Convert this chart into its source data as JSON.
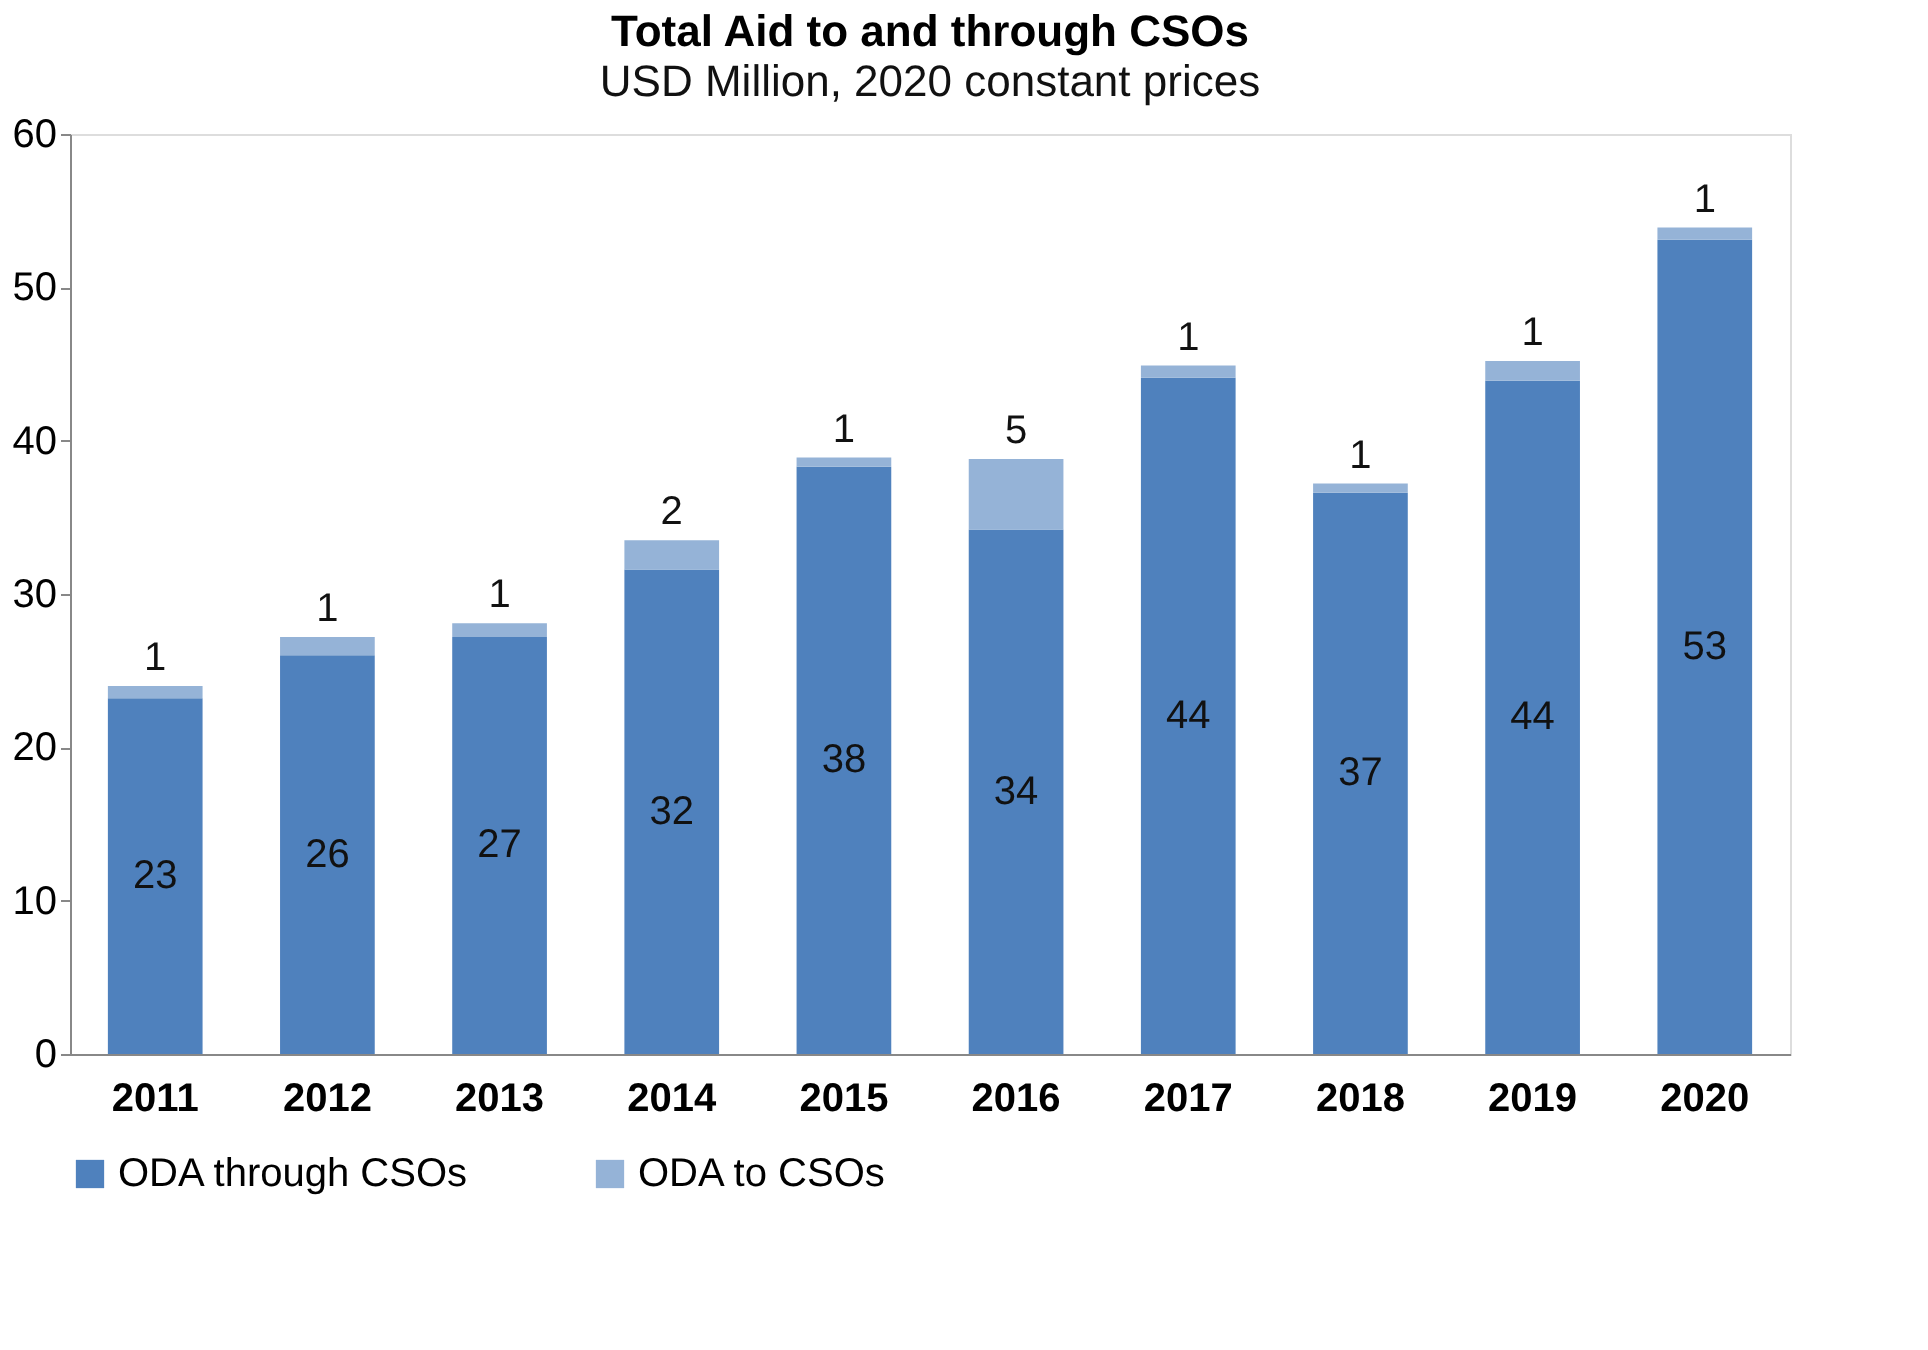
{
  "chart_data": {
    "type": "bar",
    "title": "Total Aid to and through CSOs",
    "subtitle": "USD Million, 2020 constant prices",
    "categories": [
      "2011",
      "2012",
      "2013",
      "2014",
      "2015",
      "2016",
      "2017",
      "2018",
      "2019",
      "2020"
    ],
    "stacked": true,
    "series": [
      {
        "name": "ODA through CSOs",
        "color": "#4f81bd",
        "values": [
          23.2,
          26.0,
          27.2,
          31.6,
          38.3,
          34.2,
          44.1,
          36.6,
          43.9,
          53.1
        ],
        "value_labels": [
          "23",
          "26",
          "27",
          "32",
          "38",
          "34",
          "44",
          "37",
          "44",
          "53"
        ]
      },
      {
        "name": "ODA to CSOs",
        "color": "#95b3d7",
        "values": [
          0.8,
          1.2,
          0.9,
          1.9,
          0.6,
          4.6,
          0.8,
          0.6,
          1.3,
          0.8
        ],
        "value_labels": [
          "1",
          "1",
          "1",
          "2",
          "1",
          "5",
          "1",
          "1",
          "1",
          "1"
        ]
      }
    ],
    "ylim": [
      0,
      60
    ],
    "yticks": [
      0,
      10,
      20,
      30,
      40,
      50,
      60
    ],
    "grid": false,
    "legend": "bottom"
  }
}
